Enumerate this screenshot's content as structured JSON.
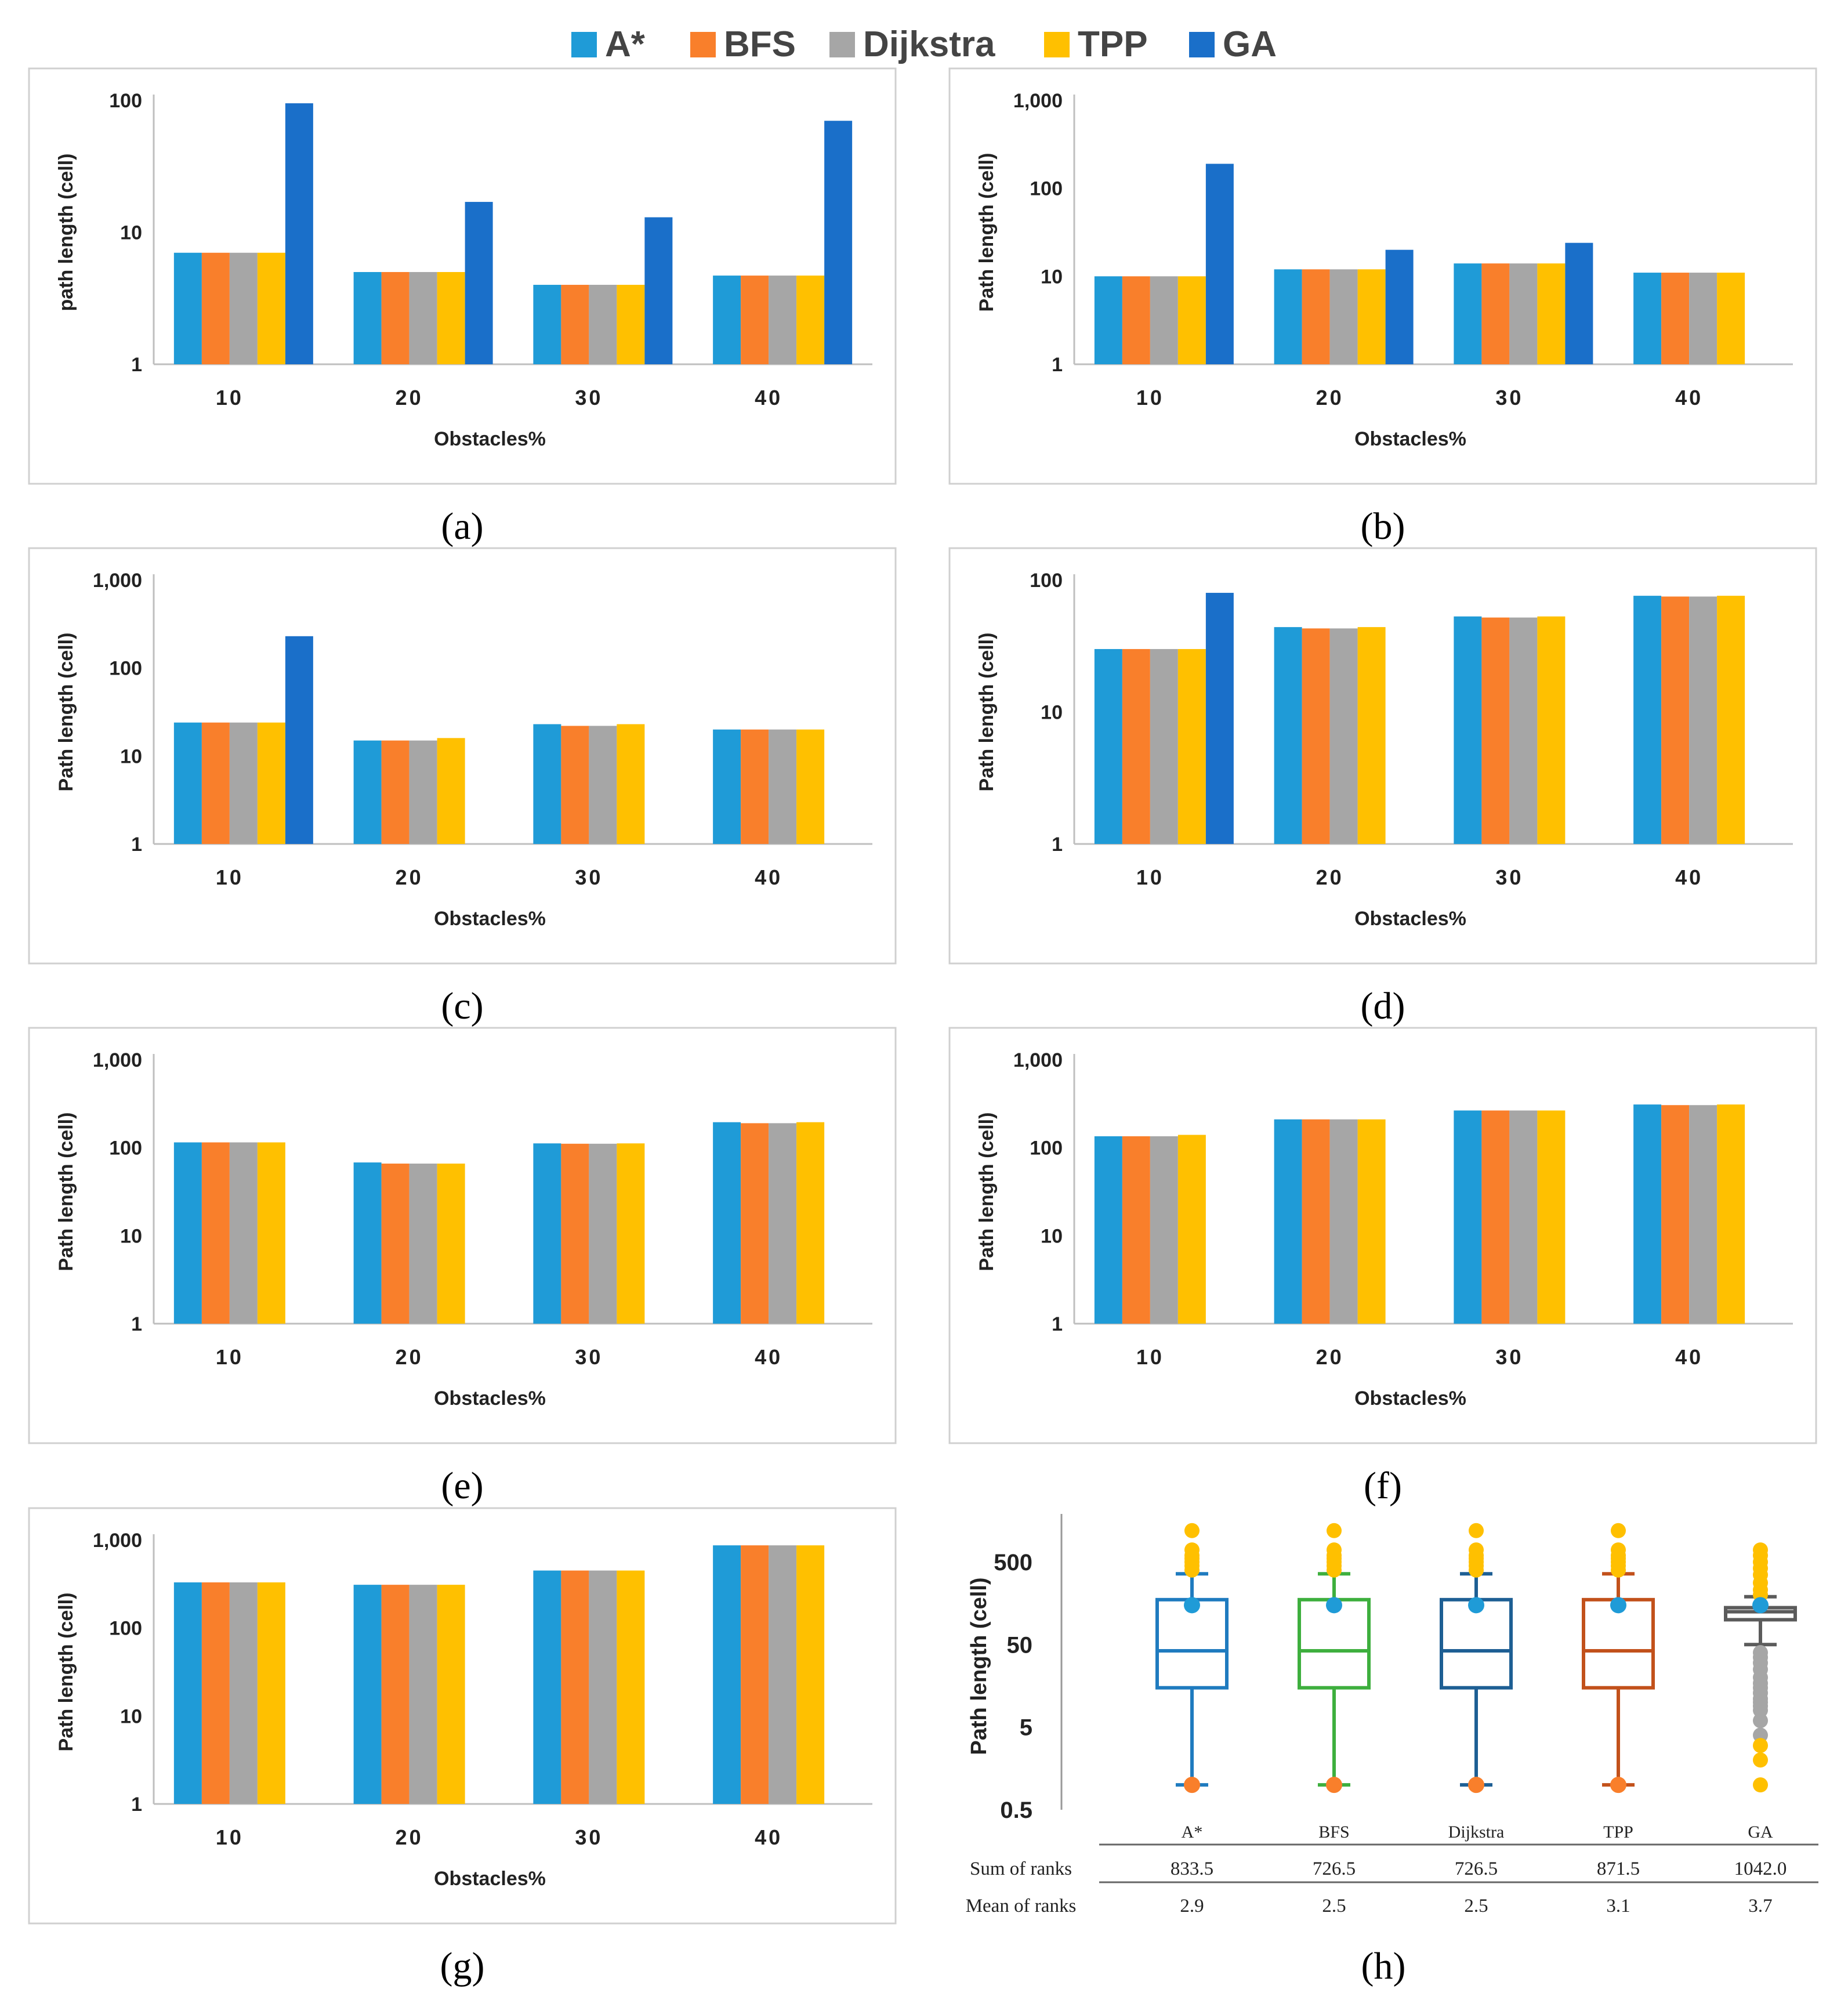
{
  "legend": [
    {
      "name": "A*",
      "color": "#1f9bd7"
    },
    {
      "name": "BFS",
      "color": "#f97f2b"
    },
    {
      "name": "Dijkstra",
      "color": "#a6a6a6"
    },
    {
      "name": "TPP",
      "color": "#ffc000"
    },
    {
      "name": "GA",
      "color": "#1a6fc9"
    }
  ],
  "panel_labels": [
    "(a)",
    "(b)",
    "(c)",
    "(d)",
    "(e)",
    "(f)",
    "(g)",
    "(h)"
  ],
  "chart_data": [
    {
      "type": "bar",
      "panel": "(a)",
      "log_scale": true,
      "ylim": [
        1,
        100
      ],
      "yticks": [
        "1",
        "10",
        "100"
      ],
      "ylabel": "path length (cell)",
      "xlabel": "Obstacles%",
      "categories": [
        "10",
        "20",
        "30",
        "40"
      ],
      "series": [
        {
          "name": "A*",
          "values": [
            7,
            5,
            4,
            4.7
          ]
        },
        {
          "name": "BFS",
          "values": [
            7,
            5,
            4,
            4.7
          ]
        },
        {
          "name": "Dijkstra",
          "values": [
            7,
            5,
            4,
            4.7
          ]
        },
        {
          "name": "TPP",
          "values": [
            7,
            5,
            4,
            4.7
          ]
        },
        {
          "name": "GA",
          "values": [
            95,
            17,
            13,
            70
          ]
        }
      ]
    },
    {
      "type": "bar",
      "panel": "(b)",
      "log_scale": true,
      "ylim": [
        1,
        1000
      ],
      "yticks": [
        "1",
        "10",
        "100",
        "1,000"
      ],
      "ylabel": "Path length (cell)",
      "xlabel": "Obstacles%",
      "categories": [
        "10",
        "20",
        "30",
        "40"
      ],
      "series": [
        {
          "name": "A*",
          "values": [
            10,
            12,
            14,
            11
          ]
        },
        {
          "name": "BFS",
          "values": [
            10,
            12,
            14,
            11
          ]
        },
        {
          "name": "Dijkstra",
          "values": [
            10,
            12,
            14,
            11
          ]
        },
        {
          "name": "TPP",
          "values": [
            10,
            12,
            14,
            11
          ]
        },
        {
          "name": "GA",
          "values": [
            190,
            20,
            24,
            null
          ]
        }
      ]
    },
    {
      "type": "bar",
      "panel": "(c)",
      "log_scale": true,
      "ylim": [
        1,
        1000
      ],
      "yticks": [
        "1",
        "10",
        "100",
        "1,000"
      ],
      "ylabel": "Path length (cell)",
      "xlabel": "Obstacles%",
      "categories": [
        "10",
        "20",
        "30",
        "40"
      ],
      "series": [
        {
          "name": "A*",
          "values": [
            24,
            15,
            23,
            20
          ]
        },
        {
          "name": "BFS",
          "values": [
            24,
            15,
            22,
            20
          ]
        },
        {
          "name": "Dijkstra",
          "values": [
            24,
            15,
            22,
            20
          ]
        },
        {
          "name": "TPP",
          "values": [
            24,
            16,
            23,
            20
          ]
        },
        {
          "name": "GA",
          "values": [
            230,
            null,
            null,
            null
          ]
        }
      ]
    },
    {
      "type": "bar",
      "panel": "(d)",
      "log_scale": true,
      "ylim": [
        1,
        100
      ],
      "yticks": [
        "1",
        "10",
        "100"
      ],
      "ylabel": "Path length (cell)",
      "xlabel": "Obstacles%",
      "categories": [
        "10",
        "20",
        "30",
        "40"
      ],
      "series": [
        {
          "name": "A*",
          "values": [
            30,
            44,
            53,
            76
          ]
        },
        {
          "name": "BFS",
          "values": [
            30,
            43,
            52,
            75
          ]
        },
        {
          "name": "Dijkstra",
          "values": [
            30,
            43,
            52,
            75
          ]
        },
        {
          "name": "TPP",
          "values": [
            30,
            44,
            53,
            76
          ]
        },
        {
          "name": "GA",
          "values": [
            80,
            null,
            null,
            null
          ]
        }
      ]
    },
    {
      "type": "bar",
      "panel": "(e)",
      "log_scale": true,
      "ylim": [
        1,
        1000
      ],
      "yticks": [
        "1",
        "10",
        "100",
        "1,000"
      ],
      "ylabel": "Path length (cell)",
      "xlabel": "Obstacles%",
      "categories": [
        "10",
        "20",
        "30",
        "40"
      ],
      "series": [
        {
          "name": "A*",
          "values": [
            115,
            68,
            112,
            195
          ]
        },
        {
          "name": "BFS",
          "values": [
            115,
            66,
            111,
            190
          ]
        },
        {
          "name": "Dijkstra",
          "values": [
            115,
            66,
            111,
            190
          ]
        },
        {
          "name": "TPP",
          "values": [
            115,
            66,
            112,
            195
          ]
        }
      ]
    },
    {
      "type": "bar",
      "panel": "(f)",
      "log_scale": true,
      "ylim": [
        1,
        1000
      ],
      "yticks": [
        "1",
        "10",
        "100",
        "1,000"
      ],
      "ylabel": "Path length (cell)",
      "xlabel": "Obstacles%",
      "categories": [
        "10",
        "20",
        "30",
        "40"
      ],
      "series": [
        {
          "name": "A*",
          "values": [
            135,
            210,
            265,
            310
          ]
        },
        {
          "name": "BFS",
          "values": [
            135,
            210,
            265,
            305
          ]
        },
        {
          "name": "Dijkstra",
          "values": [
            135,
            210,
            265,
            305
          ]
        },
        {
          "name": "TPP",
          "values": [
            140,
            210,
            265,
            310
          ]
        }
      ]
    },
    {
      "type": "bar",
      "panel": "(g)",
      "log_scale": true,
      "ylim": [
        1,
        1000
      ],
      "yticks": [
        "1",
        "10",
        "100",
        "1,000"
      ],
      "ylabel": "Path length (cell)",
      "xlabel": "Obstacles%",
      "categories": [
        "10",
        "20",
        "30",
        "40"
      ],
      "series": [
        {
          "name": "A*",
          "values": [
            330,
            310,
            450,
            870
          ]
        },
        {
          "name": "BFS",
          "values": [
            330,
            310,
            450,
            870
          ]
        },
        {
          "name": "Dijkstra",
          "values": [
            330,
            310,
            450,
            870
          ]
        },
        {
          "name": "TPP",
          "values": [
            330,
            310,
            450,
            870
          ]
        }
      ]
    },
    {
      "type": "box",
      "panel": "(h)",
      "log_scale": true,
      "ylim": [
        0.5,
        1500
      ],
      "yticks": [
        "0.5",
        "5",
        "50",
        "500"
      ],
      "ylabel": "Path length (cell)",
      "categories": [
        "A*",
        "BFS",
        "Dijkstra",
        "TPP",
        "GA"
      ],
      "boxes": [
        {
          "name": "A*",
          "color": "#1f7bbf",
          "min": 1,
          "q1": 15,
          "median": 42,
          "q3": 175,
          "max": 360,
          "mean": 150
        },
        {
          "name": "BFS",
          "color": "#3eaf3e",
          "min": 1,
          "q1": 15,
          "median": 42,
          "q3": 175,
          "max": 360,
          "mean": 150
        },
        {
          "name": "Dijkstra",
          "color": "#1e5f94",
          "min": 1,
          "q1": 15,
          "median": 42,
          "q3": 175,
          "max": 360,
          "mean": 150
        },
        {
          "name": "TPP",
          "color": "#c2511b",
          "min": 1,
          "q1": 15,
          "median": 42,
          "q3": 175,
          "max": 360,
          "mean": 150
        },
        {
          "name": "GA",
          "color": "#5b5b5b",
          "min": 50,
          "q1": 100,
          "median": 125,
          "q3": 140,
          "max": 190,
          "mean": 150
        }
      ],
      "outliers": {
        "A*": [
          1200,
          700,
          600,
          550,
          500,
          450,
          400
        ],
        "BFS": [
          1200,
          700,
          600,
          550,
          500,
          450,
          400
        ],
        "Dijkstra": [
          1200,
          700,
          600,
          550,
          500,
          450,
          400
        ],
        "TPP": [
          1200,
          700,
          600,
          550,
          500,
          450,
          400
        ],
        "GA": [
          700,
          600,
          500,
          420,
          350,
          280,
          230,
          200,
          40,
          35,
          30,
          25,
          20,
          17,
          15,
          13,
          11,
          10,
          9,
          8,
          6,
          4,
          3,
          2,
          1
        ]
      },
      "table": {
        "headers": [
          "A*",
          "BFS",
          "Dijkstra",
          "TPP",
          "GA"
        ],
        "rows": [
          {
            "label": "Sum of ranks",
            "values": [
              "833.5",
              "726.5",
              "726.5",
              "871.5",
              "1042.0"
            ]
          },
          {
            "label": "Mean of ranks",
            "values": [
              "2.9",
              "2.5",
              "2.5",
              "3.1",
              "3.7"
            ]
          }
        ]
      }
    }
  ]
}
